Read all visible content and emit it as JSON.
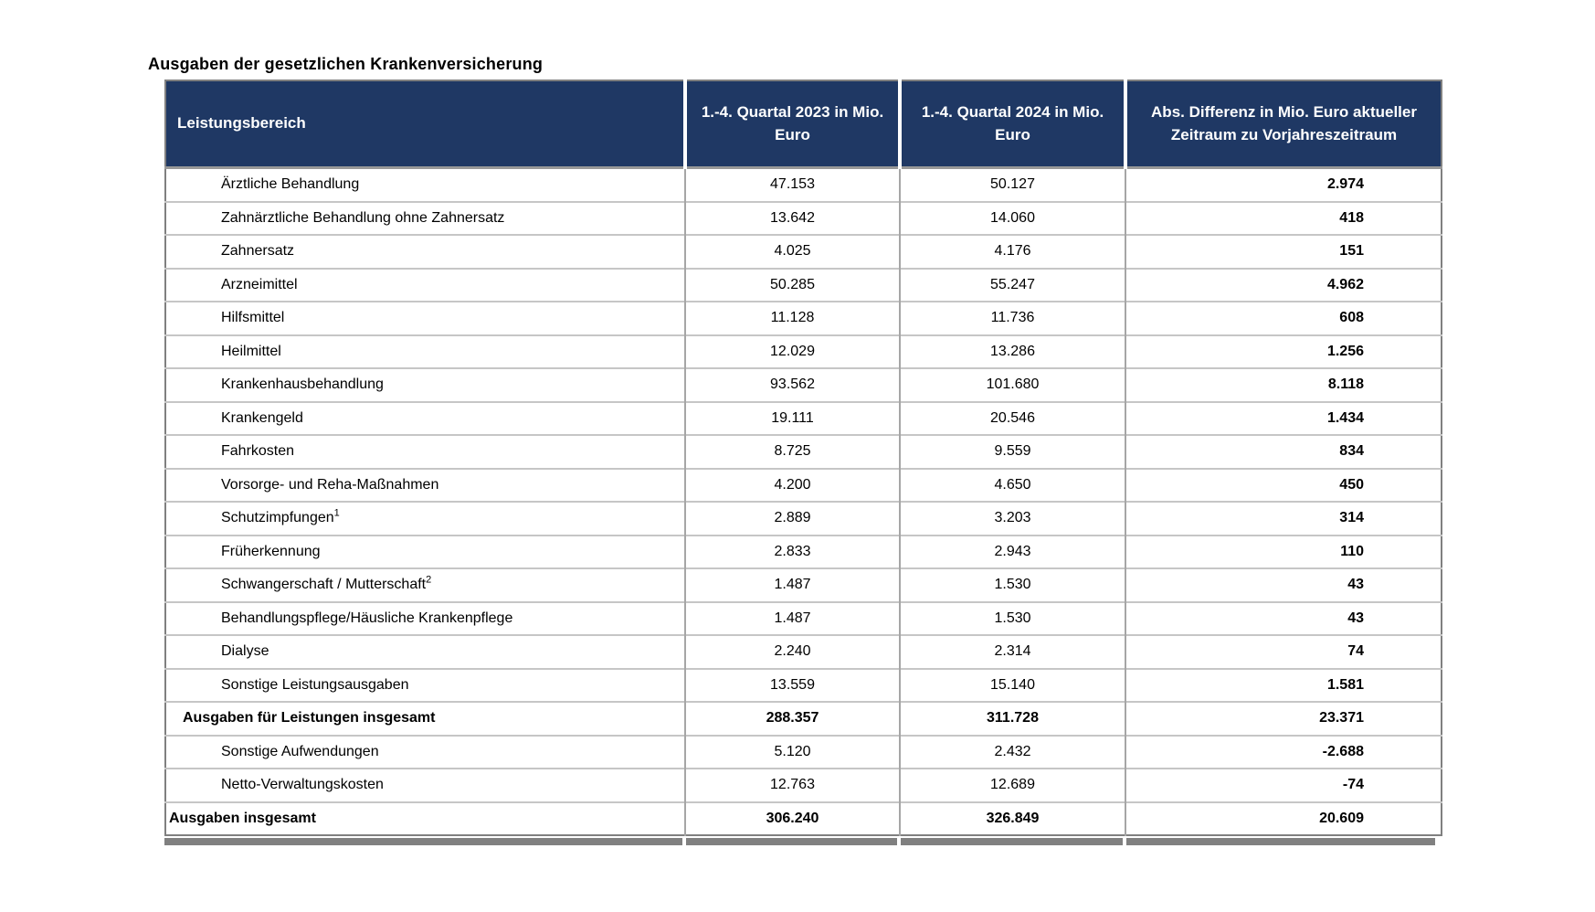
{
  "colors": {
    "header_bg": "#1f3864",
    "header_fg": "#ffffff"
  },
  "chart_data": {
    "type": "table",
    "title": "Ausgaben der gesetzlichen Krankenversicherung",
    "columns": [
      "Leistungsbereich",
      "1.-4. Quartal 2023 in Mio. Euro",
      "1.-4. Quartal 2024 in Mio. Euro",
      "Abs. Differenz in Mio. Euro aktueller Zeitraum zu Vorjahreszeitraum"
    ],
    "rows": [
      {
        "label": "Ärztliche Behandlung",
        "sup": "",
        "q2023": "47.153",
        "q2024": "50.127",
        "diff": "2.974",
        "style": "item"
      },
      {
        "label": "Zahnärztliche Behandlung ohne Zahnersatz",
        "sup": "",
        "q2023": "13.642",
        "q2024": "14.060",
        "diff": "418",
        "style": "item"
      },
      {
        "label": "Zahnersatz",
        "sup": "",
        "q2023": "4.025",
        "q2024": "4.176",
        "diff": "151",
        "style": "item"
      },
      {
        "label": "Arzneimittel",
        "sup": "",
        "q2023": "50.285",
        "q2024": "55.247",
        "diff": "4.962",
        "style": "item"
      },
      {
        "label": "Hilfsmittel",
        "sup": "",
        "q2023": "11.128",
        "q2024": "11.736",
        "diff": "608",
        "style": "item"
      },
      {
        "label": "Heilmittel",
        "sup": "",
        "q2023": "12.029",
        "q2024": "13.286",
        "diff": "1.256",
        "style": "item"
      },
      {
        "label": "Krankenhausbehandlung",
        "sup": "",
        "q2023": "93.562",
        "q2024": "101.680",
        "diff": "8.118",
        "style": "item"
      },
      {
        "label": "Krankengeld",
        "sup": "",
        "q2023": "19.111",
        "q2024": "20.546",
        "diff": "1.434",
        "style": "item"
      },
      {
        "label": "Fahrkosten",
        "sup": "",
        "q2023": "8.725",
        "q2024": "9.559",
        "diff": "834",
        "style": "item"
      },
      {
        "label": "Vorsorge- und Reha-Maßnahmen",
        "sup": "",
        "q2023": "4.200",
        "q2024": "4.650",
        "diff": "450",
        "style": "item"
      },
      {
        "label": "Schutzimpfungen",
        "sup": "1",
        "q2023": "2.889",
        "q2024": "3.203",
        "diff": "314",
        "style": "item"
      },
      {
        "label": "Früherkennung",
        "sup": "",
        "q2023": "2.833",
        "q2024": "2.943",
        "diff": "110",
        "style": "item"
      },
      {
        "label": "Schwangerschaft / Mutterschaft",
        "sup": "2",
        "q2023": "1.487",
        "q2024": "1.530",
        "diff": "43",
        "style": "item"
      },
      {
        "label": "Behandlungspflege/Häusliche Krankenpflege",
        "sup": "",
        "q2023": "1.487",
        "q2024": "1.530",
        "diff": "43",
        "style": "item"
      },
      {
        "label": "Dialyse",
        "sup": "",
        "q2023": "2.240",
        "q2024": "2.314",
        "diff": "74",
        "style": "item"
      },
      {
        "label": "Sonstige Leistungsausgaben",
        "sup": "",
        "q2023": "13.559",
        "q2024": "15.140",
        "diff": "1.581",
        "style": "item"
      },
      {
        "label": "Ausgaben für Leistungen insgesamt",
        "sup": "",
        "q2023": "288.357",
        "q2024": "311.728",
        "diff": "23.371",
        "style": "subtotal"
      },
      {
        "label": "Sonstige Aufwendungen",
        "sup": "",
        "q2023": "5.120",
        "q2024": "2.432",
        "diff": "-2.688",
        "style": "item"
      },
      {
        "label": "Netto-Verwaltungskosten",
        "sup": "",
        "q2023": "12.763",
        "q2024": "12.689",
        "diff": "-74",
        "style": "item"
      },
      {
        "label": "Ausgaben insgesamt",
        "sup": "",
        "q2023": "306.240",
        "q2024": "326.849",
        "diff": "20.609",
        "style": "total"
      }
    ]
  }
}
